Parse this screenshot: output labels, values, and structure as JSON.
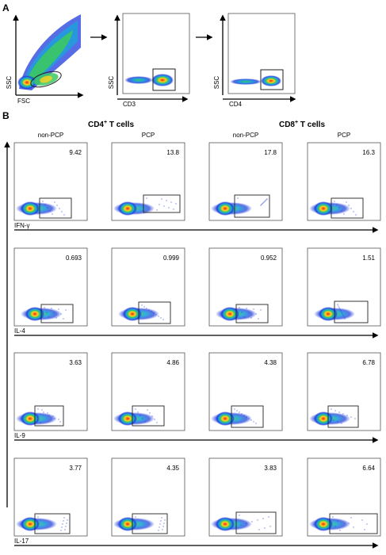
{
  "panel_a": {
    "letter": "A",
    "plots": [
      {
        "id": "fsc-ssc",
        "x_axis": "FSC",
        "y_axis": "SSC",
        "population": "lymphocyte cloud"
      },
      {
        "id": "cd3-ssc",
        "x_axis": "CD3",
        "y_axis": "SSC",
        "population": "gated cluster"
      },
      {
        "id": "cd4-ssc",
        "x_axis": "CD4",
        "y_axis": "SSC",
        "population": "gated cluster"
      }
    ]
  },
  "panel_b": {
    "letter": "B",
    "groups": [
      {
        "label_main": "CD4",
        "label_sup": "+",
        "label_rest": " T cells"
      },
      {
        "label_main": "CD8",
        "label_sup": "+",
        "label_rest": " T cells"
      }
    ],
    "columns": [
      "non-PCP",
      "PCP",
      "non-PCP",
      "PCP"
    ],
    "rows": [
      {
        "marker": "IFN-γ",
        "values": [
          "9.42",
          "13.8",
          "17.8",
          "16.3"
        ]
      },
      {
        "marker": "IL-4",
        "values": [
          "0.693",
          "0.999",
          "0.952",
          "1.51"
        ]
      },
      {
        "marker": "IL-9",
        "values": [
          "3.63",
          "4.86",
          "4.38",
          "6.78"
        ]
      },
      {
        "marker": "IL-17",
        "values": [
          "3.77",
          "4.35",
          "3.83",
          "6.64"
        ]
      }
    ]
  },
  "colors": {
    "density_core": "#d42a1c",
    "density_mid": "#ffd21e",
    "density_green": "#3cc862",
    "density_cyan": "#1ea0dc",
    "density_outer": "#1e3cdc",
    "gate": "#222222",
    "frame": "#555555"
  }
}
